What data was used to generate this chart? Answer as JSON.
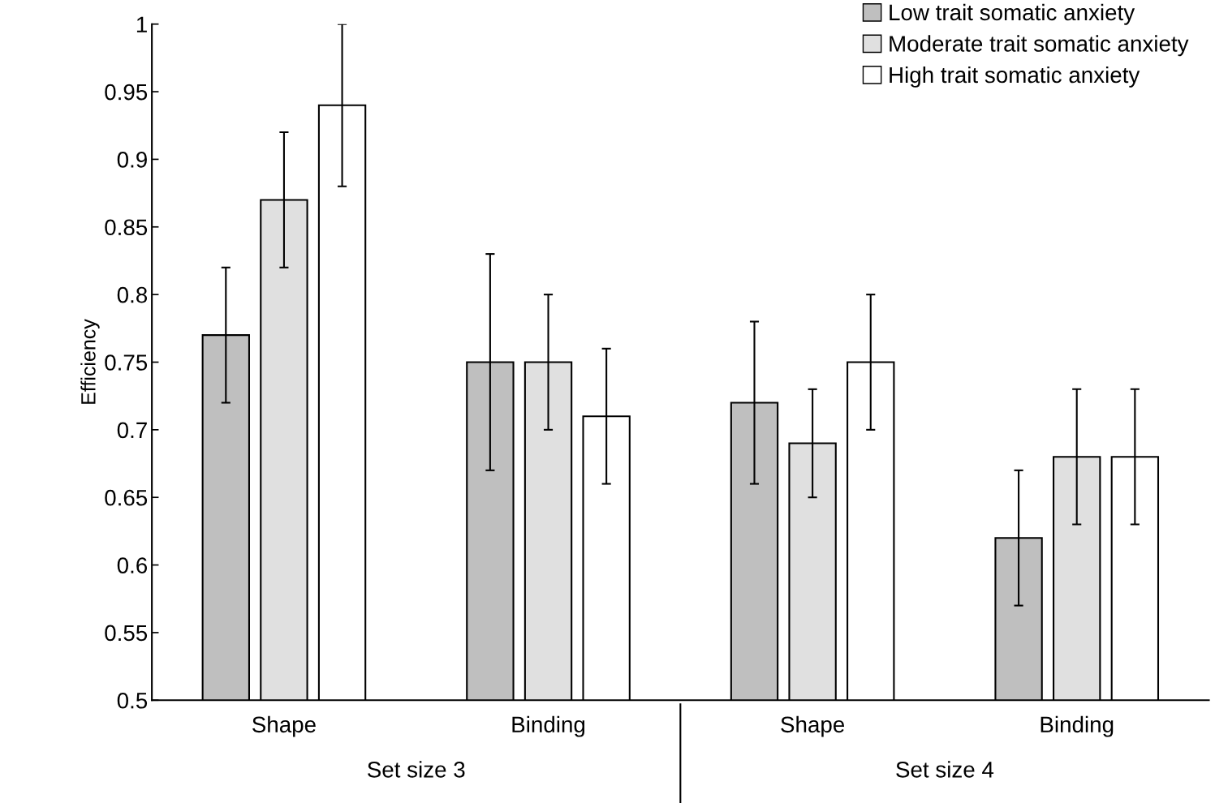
{
  "chart_data": {
    "type": "bar",
    "ylabel": "Efficiency",
    "categories": [
      "Shape",
      "Binding",
      "Shape",
      "Binding"
    ],
    "series": [
      {
        "name": "Low trait somatic anxiety",
        "color": "#bfbfbf",
        "values": [
          0.77,
          0.75,
          0.72,
          0.62
        ],
        "errors": [
          0.05,
          0.08,
          0.06,
          0.05
        ]
      },
      {
        "name": "Moderate trait somatic anxiety",
        "color": "#e0e0e0",
        "values": [
          0.87,
          0.75,
          0.69,
          0.68
        ],
        "errors": [
          0.05,
          0.05,
          0.04,
          0.05
        ]
      },
      {
        "name": "High trait somatic anxiety",
        "color": "#ffffff",
        "values": [
          0.94,
          0.71,
          0.75,
          0.68
        ],
        "errors": [
          0.06,
          0.05,
          0.05,
          0.05
        ]
      }
    ],
    "annotations": [
      "Set size 3",
      "Set size 4"
    ],
    "ylim": [
      0.5,
      1
    ],
    "yticks": [
      0.5,
      0.55,
      0.6,
      0.65,
      0.7,
      0.75,
      0.8,
      0.85,
      0.9,
      0.95,
      1
    ],
    "legend": "top right",
    "grid": false
  }
}
